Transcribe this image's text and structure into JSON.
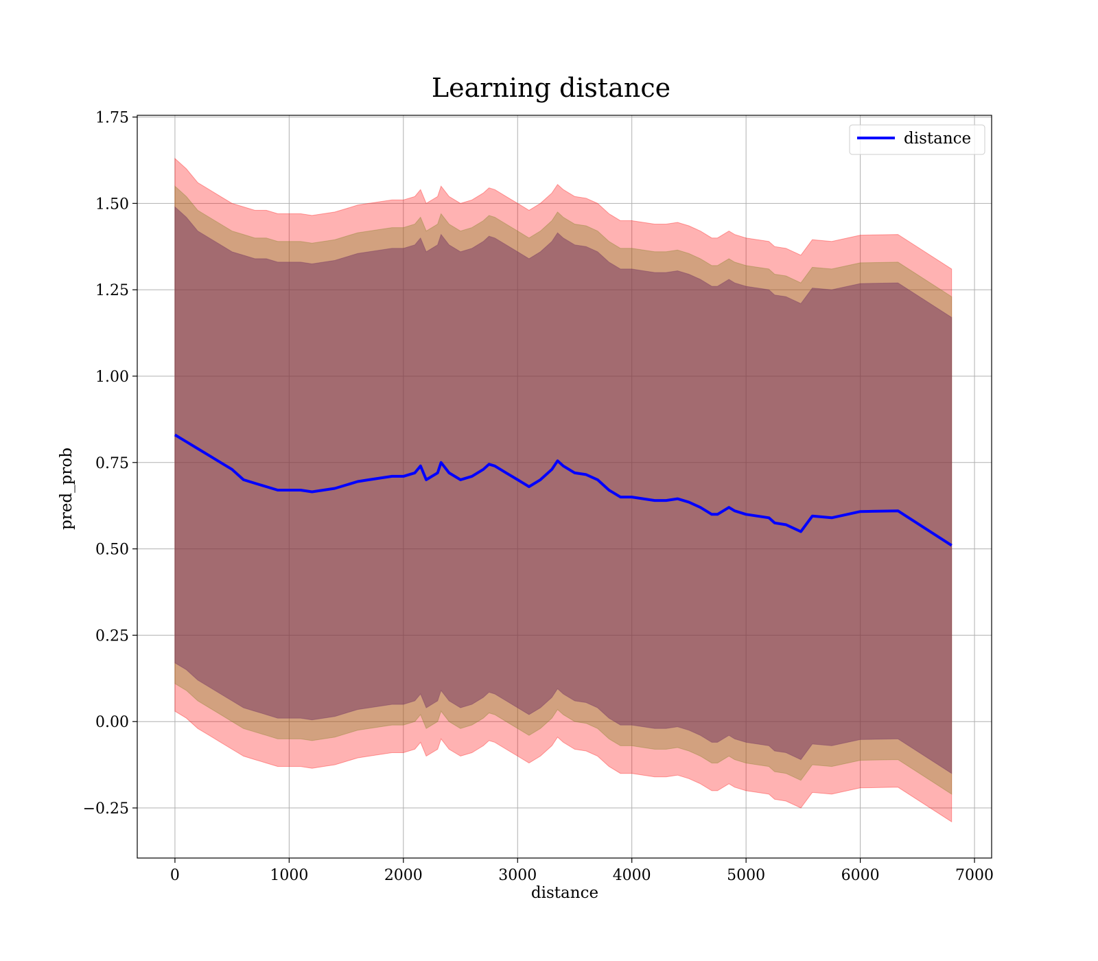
{
  "chart_data": {
    "type": "line",
    "title": "Learning distance",
    "xlabel": "distance",
    "ylabel": "pred_prob",
    "xlim": [
      -330,
      7150
    ],
    "ylim": [
      -0.395,
      1.755
    ],
    "x_ticks": [
      0,
      1000,
      2000,
      3000,
      4000,
      5000,
      6000,
      7000
    ],
    "x_tick_labels": [
      "0",
      "1000",
      "2000",
      "3000",
      "4000",
      "5000",
      "6000",
      "7000"
    ],
    "y_ticks": [
      -0.25,
      0.0,
      0.25,
      0.5,
      0.75,
      1.0,
      1.25,
      1.5,
      1.75
    ],
    "y_tick_labels": [
      "−0.25",
      "0.00",
      "0.25",
      "0.50",
      "0.75",
      "1.00",
      "1.25",
      "1.50",
      "1.75"
    ],
    "grid": true,
    "legend_position": "top-right",
    "series": [
      {
        "name": "distance",
        "color": "#0000ff",
        "x": [
          0,
          100,
          200,
          300,
          400,
          500,
          600,
          700,
          800,
          900,
          1000,
          1100,
          1200,
          1300,
          1400,
          1500,
          1600,
          1700,
          1800,
          1900,
          2000,
          2100,
          2150,
          2200,
          2300,
          2330,
          2400,
          2500,
          2600,
          2700,
          2750,
          2800,
          2900,
          3000,
          3100,
          3200,
          3300,
          3350,
          3400,
          3500,
          3600,
          3700,
          3800,
          3900,
          4000,
          4100,
          4200,
          4300,
          4400,
          4500,
          4600,
          4700,
          4750,
          4850,
          4900,
          5000,
          5100,
          5200,
          5250,
          5350,
          5480,
          5580,
          5750,
          6000,
          6330,
          6800
        ],
        "values": [
          0.83,
          0.81,
          0.79,
          0.77,
          0.75,
          0.73,
          0.7,
          0.69,
          0.68,
          0.67,
          0.67,
          0.67,
          0.665,
          0.67,
          0.675,
          0.685,
          0.695,
          0.7,
          0.705,
          0.71,
          0.71,
          0.72,
          0.74,
          0.7,
          0.72,
          0.75,
          0.72,
          0.7,
          0.71,
          0.73,
          0.745,
          0.74,
          0.72,
          0.7,
          0.68,
          0.7,
          0.73,
          0.755,
          0.74,
          0.72,
          0.715,
          0.7,
          0.67,
          0.65,
          0.65,
          0.645,
          0.64,
          0.64,
          0.645,
          0.635,
          0.62,
          0.6,
          0.6,
          0.62,
          0.61,
          0.6,
          0.595,
          0.59,
          0.575,
          0.57,
          0.55,
          0.595,
          0.59,
          0.608,
          0.61,
          0.51
        ]
      }
    ],
    "bands": [
      {
        "color": "#ff0000",
        "opacity": 0.3,
        "upper": [
          1.63,
          1.6,
          1.56,
          1.54,
          1.52,
          1.5,
          1.49,
          1.48,
          1.48,
          1.47,
          1.47,
          1.47,
          1.465,
          1.47,
          1.475,
          1.485,
          1.495,
          1.5,
          1.505,
          1.51,
          1.51,
          1.52,
          1.54,
          1.5,
          1.52,
          1.55,
          1.52,
          1.5,
          1.51,
          1.53,
          1.545,
          1.54,
          1.52,
          1.5,
          1.48,
          1.5,
          1.53,
          1.555,
          1.54,
          1.52,
          1.515,
          1.5,
          1.47,
          1.45,
          1.45,
          1.445,
          1.44,
          1.44,
          1.445,
          1.435,
          1.42,
          1.4,
          1.4,
          1.42,
          1.41,
          1.4,
          1.395,
          1.39,
          1.375,
          1.37,
          1.35,
          1.395,
          1.39,
          1.408,
          1.41,
          1.31
        ],
        "lower": [
          0.03,
          0.01,
          -0.02,
          -0.04,
          -0.06,
          -0.08,
          -0.1,
          -0.11,
          -0.12,
          -0.13,
          -0.13,
          -0.13,
          -0.135,
          -0.13,
          -0.125,
          -0.115,
          -0.105,
          -0.1,
          -0.095,
          -0.09,
          -0.09,
          -0.08,
          -0.06,
          -0.1,
          -0.08,
          -0.05,
          -0.08,
          -0.1,
          -0.09,
          -0.07,
          -0.055,
          -0.06,
          -0.08,
          -0.1,
          -0.12,
          -0.1,
          -0.07,
          -0.045,
          -0.06,
          -0.08,
          -0.085,
          -0.1,
          -0.13,
          -0.15,
          -0.15,
          -0.155,
          -0.16,
          -0.16,
          -0.155,
          -0.165,
          -0.18,
          -0.2,
          -0.2,
          -0.18,
          -0.19,
          -0.2,
          -0.205,
          -0.21,
          -0.225,
          -0.23,
          -0.25,
          -0.205,
          -0.21,
          -0.192,
          -0.19,
          -0.29
        ]
      },
      {
        "color": "#7f8020",
        "opacity": 0.35,
        "upper": [
          1.55,
          1.52,
          1.48,
          1.46,
          1.44,
          1.42,
          1.41,
          1.4,
          1.4,
          1.39,
          1.39,
          1.39,
          1.385,
          1.39,
          1.395,
          1.405,
          1.415,
          1.42,
          1.425,
          1.43,
          1.43,
          1.44,
          1.46,
          1.42,
          1.44,
          1.47,
          1.44,
          1.42,
          1.43,
          1.45,
          1.465,
          1.46,
          1.44,
          1.42,
          1.4,
          1.42,
          1.45,
          1.475,
          1.46,
          1.44,
          1.435,
          1.42,
          1.39,
          1.37,
          1.37,
          1.365,
          1.36,
          1.36,
          1.365,
          1.355,
          1.34,
          1.32,
          1.32,
          1.34,
          1.33,
          1.32,
          1.315,
          1.31,
          1.295,
          1.29,
          1.27,
          1.315,
          1.31,
          1.328,
          1.33,
          1.23
        ],
        "lower": [
          0.11,
          0.09,
          0.06,
          0.04,
          0.02,
          0.0,
          -0.02,
          -0.03,
          -0.04,
          -0.05,
          -0.05,
          -0.05,
          -0.055,
          -0.05,
          -0.045,
          -0.035,
          -0.025,
          -0.02,
          -0.015,
          -0.01,
          -0.01,
          0.0,
          0.02,
          -0.02,
          0.0,
          0.03,
          0.0,
          -0.02,
          -0.01,
          0.01,
          0.025,
          0.02,
          0.0,
          -0.02,
          -0.04,
          -0.02,
          0.01,
          0.035,
          0.02,
          0.0,
          -0.005,
          -0.02,
          -0.05,
          -0.07,
          -0.07,
          -0.075,
          -0.08,
          -0.08,
          -0.075,
          -0.085,
          -0.1,
          -0.12,
          -0.12,
          -0.1,
          -0.11,
          -0.12,
          -0.125,
          -0.13,
          -0.145,
          -0.15,
          -0.17,
          -0.125,
          -0.13,
          -0.112,
          -0.11,
          -0.21
        ]
      },
      {
        "color": "#6a2a60",
        "opacity": 0.45,
        "upper": [
          1.49,
          1.46,
          1.42,
          1.4,
          1.38,
          1.36,
          1.35,
          1.34,
          1.34,
          1.33,
          1.33,
          1.33,
          1.325,
          1.33,
          1.335,
          1.345,
          1.355,
          1.36,
          1.365,
          1.37,
          1.37,
          1.38,
          1.4,
          1.36,
          1.38,
          1.41,
          1.38,
          1.36,
          1.37,
          1.39,
          1.405,
          1.4,
          1.38,
          1.36,
          1.34,
          1.36,
          1.39,
          1.415,
          1.4,
          1.38,
          1.375,
          1.36,
          1.33,
          1.31,
          1.31,
          1.305,
          1.3,
          1.3,
          1.305,
          1.295,
          1.28,
          1.26,
          1.26,
          1.28,
          1.27,
          1.26,
          1.255,
          1.25,
          1.235,
          1.23,
          1.21,
          1.255,
          1.25,
          1.268,
          1.27,
          1.17
        ],
        "lower": [
          0.17,
          0.15,
          0.12,
          0.1,
          0.08,
          0.06,
          0.04,
          0.03,
          0.02,
          0.01,
          0.01,
          0.01,
          0.005,
          0.01,
          0.015,
          0.025,
          0.035,
          0.04,
          0.045,
          0.05,
          0.05,
          0.06,
          0.08,
          0.04,
          0.06,
          0.09,
          0.06,
          0.04,
          0.05,
          0.07,
          0.085,
          0.08,
          0.06,
          0.04,
          0.02,
          0.04,
          0.07,
          0.095,
          0.08,
          0.06,
          0.055,
          0.04,
          0.01,
          -0.01,
          -0.01,
          -0.015,
          -0.02,
          -0.02,
          -0.015,
          -0.025,
          -0.04,
          -0.06,
          -0.06,
          -0.04,
          -0.05,
          -0.06,
          -0.065,
          -0.07,
          -0.085,
          -0.09,
          -0.11,
          -0.065,
          -0.07,
          -0.052,
          -0.05,
          -0.15
        ]
      }
    ]
  }
}
